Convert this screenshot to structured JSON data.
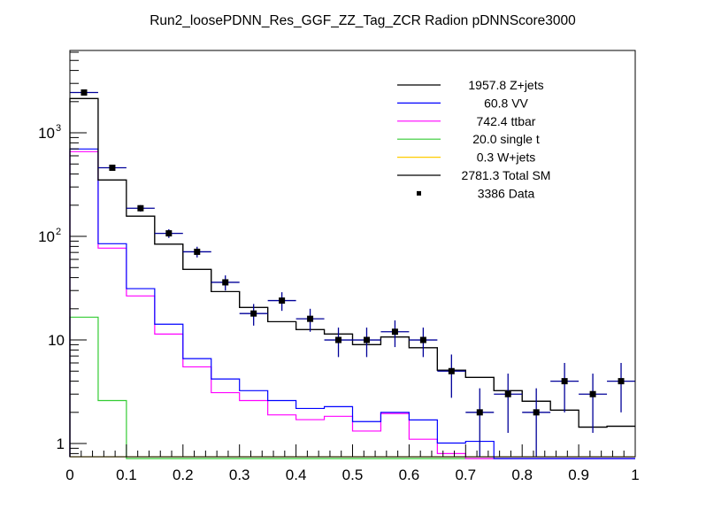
{
  "chart_data": {
    "type": "histogram-step",
    "title": "Run2_loosePDNN_Res_GGF_ZZ_Tag_ZCR Radion  pDNNScore3000",
    "xlabel": "",
    "ylabel": "",
    "xlim": [
      0,
      1
    ],
    "ylim": [
      0.745,
      6240
    ],
    "yscale": "log",
    "grid": false,
    "legend_position": "top-right",
    "bin_edges": [
      0,
      0.05,
      0.1,
      0.15,
      0.2,
      0.25,
      0.3,
      0.35,
      0.4,
      0.45,
      0.5,
      0.55,
      0.6,
      0.65,
      0.7,
      0.75,
      0.8,
      0.85,
      0.9,
      0.95,
      1.0
    ],
    "x_tick_labels": [
      "0",
      "0.1",
      "0.2",
      "0.3",
      "0.4",
      "0.5",
      "0.6",
      "0.7",
      "0.8",
      "0.9",
      "1"
    ],
    "y_tick_labels": [
      {
        "value": 1,
        "label": "1"
      },
      {
        "value": 10,
        "label": "10"
      },
      {
        "value": 100,
        "label": "10",
        "sup": "2"
      },
      {
        "value": 1000,
        "label": "10",
        "sup": "3"
      }
    ],
    "series": [
      {
        "name": "Z+jets",
        "legend": "1957.8 Z+jets",
        "color": "#000000",
        "values": [
          2140,
          350,
          157,
          84,
          48,
          29.3,
          20.6,
          15,
          12.6,
          11.4,
          9.0,
          10.7,
          8.4,
          5.1,
          4.35,
          3.24,
          2.56,
          2.1,
          1.44,
          1.47
        ]
      },
      {
        "name": "VV",
        "legend": "60.8 VV",
        "color": "#0000ff",
        "values": [
          698,
          85,
          31.3,
          14.2,
          6.6,
          4.2,
          3.24,
          2.6,
          2.18,
          2.27,
          1.63,
          2.0,
          1.69,
          1.01,
          1.05,
          0,
          0,
          0,
          0,
          0
        ]
      },
      {
        "name": "ttbar",
        "legend": "742.4 ttbar",
        "color": "#ff00ff",
        "values": [
          658,
          77,
          26.6,
          11.4,
          5.5,
          3.1,
          2.6,
          1.89,
          1.7,
          1.83,
          1.32,
          1.95,
          1.1,
          0.8,
          0,
          0,
          0,
          0,
          0,
          0
        ]
      },
      {
        "name": "single t",
        "legend": "20.0 single t",
        "color": "#33cc33",
        "values": [
          16.6,
          2.6,
          0,
          0,
          0,
          0,
          0,
          0,
          0,
          0,
          0,
          0,
          0,
          0,
          0,
          0,
          0,
          0,
          0,
          0
        ]
      },
      {
        "name": "W+jets",
        "legend": "0.3 W+jets",
        "color": "#ffcc00",
        "values": [
          0.1,
          0.05,
          0.03,
          0.02,
          0.01,
          0.01,
          0.01,
          0.01,
          0.01,
          0.01,
          0.01,
          0.01,
          0.01,
          0.01,
          0.01,
          0.01,
          0.01,
          0.01,
          0.01,
          0.01
        ]
      },
      {
        "name": "Total SM",
        "legend": "2781.3 Total SM",
        "color": "#000000",
        "values": [
          2140,
          350,
          157,
          84,
          48,
          29.3,
          20.6,
          15,
          12.6,
          11.4,
          9.0,
          10.7,
          8.4,
          5.1,
          4.35,
          3.24,
          2.56,
          2.1,
          1.44,
          1.47
        ]
      }
    ],
    "data": {
      "name": "Data",
      "legend": "3386 Data",
      "color": "#000000",
      "error_color": "#000099",
      "values": [
        2450,
        460,
        187,
        107,
        71,
        36,
        18,
        24,
        16,
        10,
        10,
        12,
        10,
        5,
        2,
        3,
        2,
        4,
        3,
        4
      ]
    }
  }
}
